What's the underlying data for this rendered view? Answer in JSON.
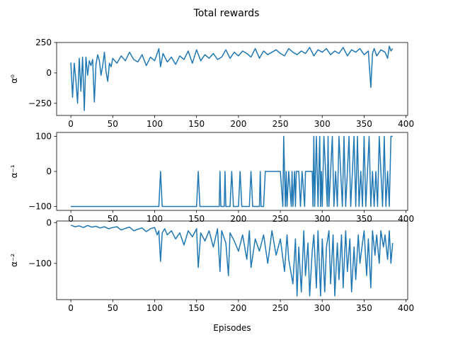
{
  "figure": {
    "title": "Total rewards",
    "xlabel": "Episodes",
    "line_color": "#1f77b4"
  },
  "chart_data": [
    {
      "type": "line",
      "ylabel": "α⁰",
      "xlim": [
        -17,
        402
      ],
      "ylim": [
        -350,
        250
      ],
      "xticks": [
        0,
        50,
        100,
        150,
        200,
        250,
        300,
        350,
        400
      ],
      "yticks": [
        -250,
        0,
        250
      ],
      "ytick_labels": [
        "−250",
        "0",
        "250"
      ],
      "series": [
        {
          "x": [
            0,
            2,
            4,
            6,
            8,
            10,
            12,
            14,
            16,
            18,
            20,
            22,
            24,
            26,
            28,
            30,
            32,
            34,
            36,
            38,
            40,
            42,
            44,
            46,
            48,
            50,
            55,
            60,
            65,
            70,
            75,
            80,
            85,
            90,
            95,
            100,
            105,
            107,
            110,
            115,
            120,
            125,
            130,
            135,
            140,
            145,
            150,
            155,
            160,
            165,
            170,
            175,
            180,
            185,
            190,
            195,
            200,
            205,
            210,
            215,
            220,
            225,
            230,
            235,
            240,
            245,
            250,
            255,
            260,
            265,
            270,
            275,
            280,
            285,
            290,
            295,
            300,
            305,
            310,
            315,
            320,
            325,
            330,
            335,
            340,
            345,
            350,
            355,
            358,
            360,
            362,
            365,
            370,
            375,
            378,
            380,
            382,
            384
          ],
          "y": [
            85,
            -200,
            80,
            -60,
            -250,
            120,
            -150,
            130,
            -310,
            130,
            -20,
            100,
            60,
            110,
            -240,
            70,
            150,
            100,
            -20,
            60,
            170,
            10,
            -70,
            80,
            50,
            120,
            80,
            140,
            100,
            170,
            110,
            90,
            150,
            60,
            130,
            100,
            200,
            50,
            160,
            90,
            130,
            70,
            140,
            110,
            180,
            80,
            190,
            100,
            150,
            120,
            160,
            110,
            130,
            190,
            120,
            170,
            140,
            180,
            160,
            130,
            200,
            120,
            180,
            150,
            170,
            190,
            160,
            140,
            200,
            170,
            150,
            180,
            160,
            210,
            140,
            190,
            170,
            200,
            150,
            180,
            160,
            210,
            140,
            190,
            170,
            200,
            150,
            180,
            -120,
            160,
            200,
            140,
            190,
            170,
            120,
            220,
            180,
            200
          ]
        }
      ]
    },
    {
      "type": "line",
      "ylabel": "α⁻¹",
      "xlim": [
        -17,
        402
      ],
      "ylim": [
        -111,
        111
      ],
      "xticks": [
        0,
        50,
        100,
        150,
        200,
        250,
        300,
        350,
        400
      ],
      "yticks": [
        -100,
        0,
        100
      ],
      "ytick_labels": [
        "−100",
        "0",
        "100"
      ],
      "series": [
        {
          "x": [
            0,
            105,
            107,
            109,
            150,
            152,
            154,
            177,
            178,
            179,
            183,
            184,
            185,
            190,
            192,
            194,
            200,
            202,
            204,
            213,
            215,
            217,
            225,
            226,
            227,
            230,
            232,
            240,
            245,
            250,
            253,
            254,
            255,
            256,
            257,
            258,
            260,
            263,
            264,
            265,
            267,
            268,
            269,
            272,
            274,
            276,
            279,
            280,
            281,
            285,
            288,
            289,
            290,
            291,
            292,
            293,
            295,
            297,
            298,
            299,
            300,
            302,
            304,
            306,
            307,
            308,
            310,
            312,
            314,
            316,
            318,
            320,
            322,
            324,
            326,
            328,
            330,
            332,
            334,
            336,
            338,
            340,
            342,
            344,
            346,
            348,
            350,
            352,
            354,
            356,
            358,
            360,
            362,
            364,
            366,
            368,
            370,
            372,
            374,
            376,
            378,
            380,
            382,
            384
          ],
          "y": [
            -100,
            -100,
            0,
            -100,
            -100,
            0,
            -100,
            -100,
            0,
            -100,
            -100,
            0,
            -100,
            -100,
            0,
            -100,
            -100,
            0,
            -100,
            -100,
            0,
            -100,
            -100,
            0,
            -100,
            -100,
            0,
            0,
            0,
            0,
            -100,
            100,
            0,
            -100,
            0,
            -100,
            0,
            -100,
            0,
            -100,
            0,
            -100,
            0,
            0,
            -100,
            0,
            -100,
            0,
            0,
            0,
            0,
            -100,
            100,
            -100,
            0,
            100,
            -100,
            100,
            -100,
            0,
            -100,
            100,
            0,
            -100,
            100,
            -100,
            0,
            100,
            -100,
            0,
            -100,
            100,
            0,
            -100,
            100,
            -100,
            0,
            100,
            -100,
            0,
            100,
            -100,
            100,
            -100,
            0,
            -100,
            100,
            -100,
            0,
            100,
            -100,
            0,
            -100,
            0,
            -100,
            100,
            0,
            -100,
            100,
            -100,
            0,
            -100,
            100,
            100
          ]
        }
      ]
    },
    {
      "type": "line",
      "ylabel": "α⁻²",
      "xlim": [
        -17,
        402
      ],
      "ylim": [
        -189,
        4
      ],
      "xticks": [
        0,
        50,
        100,
        150,
        200,
        250,
        300,
        350,
        400
      ],
      "yticks": [
        -100,
        0
      ],
      "ytick_labels": [
        "−100",
        "0"
      ],
      "series": [
        {
          "x": [
            0,
            5,
            10,
            15,
            20,
            25,
            30,
            35,
            40,
            45,
            50,
            55,
            60,
            65,
            70,
            75,
            80,
            85,
            90,
            95,
            100,
            103,
            105,
            107,
            109,
            112,
            115,
            120,
            125,
            130,
            135,
            140,
            145,
            150,
            152,
            155,
            160,
            165,
            170,
            175,
            178,
            180,
            185,
            188,
            190,
            195,
            200,
            205,
            210,
            213,
            215,
            220,
            225,
            230,
            235,
            240,
            245,
            250,
            255,
            258,
            260,
            265,
            268,
            270,
            272,
            275,
            278,
            280,
            283,
            285,
            288,
            290,
            293,
            295,
            298,
            300,
            303,
            305,
            308,
            310,
            313,
            315,
            318,
            320,
            323,
            325,
            328,
            330,
            333,
            335,
            338,
            340,
            343,
            345,
            348,
            350,
            353,
            355,
            358,
            360,
            363,
            365,
            368,
            370,
            373,
            375,
            378,
            380,
            382,
            384
          ],
          "y": [
            -6,
            -10,
            -8,
            -12,
            -7,
            -11,
            -9,
            -13,
            -10,
            -15,
            -12,
            -10,
            -18,
            -14,
            -11,
            -20,
            -16,
            -13,
            -22,
            -15,
            -12,
            -30,
            -20,
            -95,
            -25,
            -15,
            -30,
            -20,
            -40,
            -25,
            -55,
            -20,
            -35,
            -15,
            -110,
            -25,
            -45,
            -20,
            -60,
            -15,
            -120,
            -20,
            -50,
            -130,
            -25,
            -45,
            -70,
            -30,
            -90,
            -20,
            -110,
            -40,
            -70,
            -30,
            -100,
            -20,
            -80,
            -40,
            -120,
            -30,
            -90,
            -150,
            -40,
            -180,
            -60,
            -170,
            -20,
            -130,
            -50,
            -180,
            -70,
            -30,
            -160,
            -20,
            -180,
            -40,
            -170,
            -60,
            -20,
            -150,
            -30,
            -180,
            -50,
            -140,
            -30,
            -160,
            -20,
            -120,
            -40,
            -170,
            -60,
            -140,
            -30,
            -100,
            -50,
            -20,
            -130,
            -40,
            -160,
            -20,
            -80,
            -30,
            -100,
            -20,
            -60,
            -30,
            -90,
            -20,
            -100,
            -50
          ]
        }
      ]
    }
  ]
}
